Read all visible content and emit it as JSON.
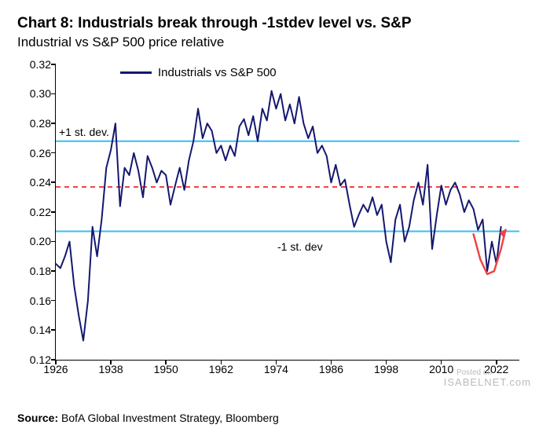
{
  "title": "Chart 8: Industrials break through -1stdev level vs. S&P",
  "subtitle": "Industrial vs S&P 500 price relative",
  "source_label": "Source:",
  "source_text": "BofA Global Investment Strategy, Bloomberg",
  "watermark_small": "Posted on",
  "watermark_big": "ISABELNET.com",
  "legend": {
    "label": "Industrials vs  S&P 500"
  },
  "annotations": {
    "plus1": "+1 st. dev.",
    "minus1": "-1 st. dev"
  },
  "chart": {
    "type": "line",
    "background_color": "#ffffff",
    "axis_color": "#000000",
    "label_fontsize": 14,
    "ylim": [
      0.12,
      0.32
    ],
    "yticks": [
      0.12,
      0.14,
      0.16,
      0.18,
      0.2,
      0.22,
      0.24,
      0.26,
      0.28,
      0.3,
      0.32
    ],
    "xlim": [
      1926,
      2027
    ],
    "xticks": [
      1926,
      1938,
      1950,
      1962,
      1974,
      1986,
      1998,
      2010,
      2022
    ],
    "reference_lines": {
      "plus1_stdev": {
        "y": 0.268,
        "color": "#38bdf8",
        "width": 2,
        "dash": "none"
      },
      "mean": {
        "y": 0.237,
        "color": "#ef4444",
        "width": 2,
        "dash": "6,5"
      },
      "minus1_stdev": {
        "y": 0.207,
        "color": "#38bdf8",
        "width": 2,
        "dash": "none"
      }
    },
    "series": {
      "name": "Industrials vs S&P 500",
      "color": "#14186e",
      "line_width": 2,
      "x": [
        1926,
        1927,
        1928,
        1929,
        1930,
        1931,
        1932,
        1933,
        1934,
        1935,
        1936,
        1937,
        1938,
        1939,
        1940,
        1941,
        1942,
        1943,
        1944,
        1945,
        1946,
        1947,
        1948,
        1949,
        1950,
        1951,
        1952,
        1953,
        1954,
        1955,
        1956,
        1957,
        1958,
        1959,
        1960,
        1961,
        1962,
        1963,
        1964,
        1965,
        1966,
        1967,
        1968,
        1969,
        1970,
        1971,
        1972,
        1973,
        1974,
        1975,
        1976,
        1977,
        1978,
        1979,
        1980,
        1981,
        1982,
        1983,
        1984,
        1985,
        1986,
        1987,
        1988,
        1989,
        1990,
        1991,
        1992,
        1993,
        1994,
        1995,
        1996,
        1997,
        1998,
        1999,
        2000,
        2001,
        2002,
        2003,
        2004,
        2005,
        2006,
        2007,
        2008,
        2009,
        2010,
        2011,
        2012,
        2013,
        2014,
        2015,
        2016,
        2017,
        2018,
        2019,
        2020,
        2021,
        2022,
        2023
      ],
      "y": [
        0.185,
        0.182,
        0.19,
        0.2,
        0.17,
        0.15,
        0.133,
        0.16,
        0.21,
        0.19,
        0.215,
        0.25,
        0.262,
        0.28,
        0.224,
        0.25,
        0.245,
        0.26,
        0.248,
        0.23,
        0.258,
        0.25,
        0.24,
        0.248,
        0.245,
        0.225,
        0.238,
        0.25,
        0.235,
        0.255,
        0.268,
        0.29,
        0.27,
        0.28,
        0.275,
        0.26,
        0.265,
        0.255,
        0.265,
        0.258,
        0.278,
        0.283,
        0.272,
        0.285,
        0.268,
        0.29,
        0.282,
        0.302,
        0.29,
        0.3,
        0.282,
        0.293,
        0.28,
        0.298,
        0.28,
        0.27,
        0.278,
        0.26,
        0.265,
        0.258,
        0.24,
        0.252,
        0.238,
        0.242,
        0.225,
        0.21,
        0.218,
        0.225,
        0.22,
        0.23,
        0.218,
        0.225,
        0.2,
        0.186,
        0.215,
        0.225,
        0.2,
        0.21,
        0.228,
        0.24,
        0.225,
        0.252,
        0.195,
        0.218,
        0.238,
        0.225,
        0.235,
        0.24,
        0.232,
        0.22,
        0.228,
        0.222,
        0.208,
        0.215,
        0.18,
        0.2,
        0.185,
        0.21
      ]
    },
    "arrow": {
      "color": "#ef4444",
      "width": 2.5,
      "path_xy": [
        [
          2017,
          0.205
        ],
        [
          2018.5,
          0.188
        ],
        [
          2020,
          0.178
        ],
        [
          2021.5,
          0.18
        ],
        [
          2023,
          0.195
        ],
        [
          2024,
          0.208
        ]
      ],
      "head_xy": [
        2024,
        0.208
      ]
    }
  }
}
